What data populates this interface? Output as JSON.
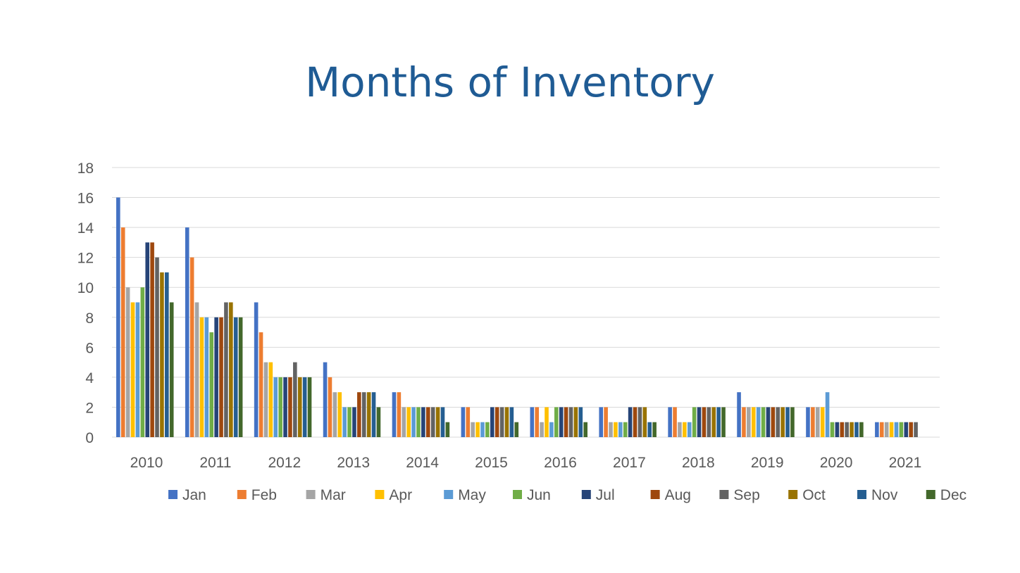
{
  "chart_data": {
    "type": "bar",
    "title": "Months of Inventory",
    "xlabel": "",
    "ylabel": "",
    "ylim": [
      0,
      18
    ],
    "y_ticks": [
      "0",
      "2",
      "4",
      "6",
      "8",
      "10",
      "12",
      "14",
      "16",
      "18"
    ],
    "grid": true,
    "legend_position": "bottom",
    "categories": [
      "2010",
      "2011",
      "2012",
      "2013",
      "2014",
      "2015",
      "2016",
      "2017",
      "2018",
      "2019",
      "2020",
      "2021"
    ],
    "series": [
      {
        "name": "Jan",
        "color": "#4472C4",
        "values": [
          16,
          14,
          9,
          5,
          3,
          2,
          2,
          2,
          2,
          3,
          2,
          1
        ]
      },
      {
        "name": "Feb",
        "color": "#ED7D31",
        "values": [
          14,
          12,
          7,
          4,
          3,
          2,
          2,
          2,
          2,
          2,
          2,
          1
        ]
      },
      {
        "name": "Mar",
        "color": "#A5A5A5",
        "values": [
          10,
          9,
          5,
          3,
          2,
          1,
          1,
          1,
          1,
          2,
          2,
          1
        ]
      },
      {
        "name": "Apr",
        "color": "#FFC000",
        "values": [
          9,
          8,
          5,
          3,
          2,
          1,
          2,
          1,
          1,
          2,
          2,
          1
        ]
      },
      {
        "name": "May",
        "color": "#5B9BD5",
        "values": [
          9,
          8,
          4,
          2,
          2,
          1,
          1,
          1,
          1,
          2,
          3,
          1
        ]
      },
      {
        "name": "Jun",
        "color": "#70AD47",
        "values": [
          10,
          7,
          4,
          2,
          2,
          1,
          2,
          1,
          2,
          2,
          1,
          1
        ]
      },
      {
        "name": "Jul",
        "color": "#264478",
        "values": [
          13,
          8,
          4,
          2,
          2,
          2,
          2,
          2,
          2,
          2,
          1,
          1
        ]
      },
      {
        "name": "Aug",
        "color": "#9E480E",
        "values": [
          13,
          8,
          4,
          3,
          2,
          2,
          2,
          2,
          2,
          2,
          1,
          1
        ]
      },
      {
        "name": "Sep",
        "color": "#636363",
        "values": [
          12,
          9,
          5,
          3,
          2,
          2,
          2,
          2,
          2,
          2,
          1,
          1
        ]
      },
      {
        "name": "Oct",
        "color": "#997300",
        "values": [
          11,
          9,
          4,
          3,
          2,
          2,
          2,
          2,
          2,
          2,
          1,
          null
        ]
      },
      {
        "name": "Nov",
        "color": "#255E91",
        "values": [
          11,
          8,
          4,
          3,
          2,
          2,
          2,
          1,
          2,
          2,
          1,
          null
        ]
      },
      {
        "name": "Dec",
        "color": "#43682B",
        "values": [
          9,
          8,
          4,
          2,
          1,
          1,
          1,
          1,
          2,
          2,
          1,
          null
        ]
      }
    ],
    "colors": {
      "title": "#1F5B94",
      "axis_text": "#595959",
      "gridline": "#D9D9D9"
    }
  }
}
